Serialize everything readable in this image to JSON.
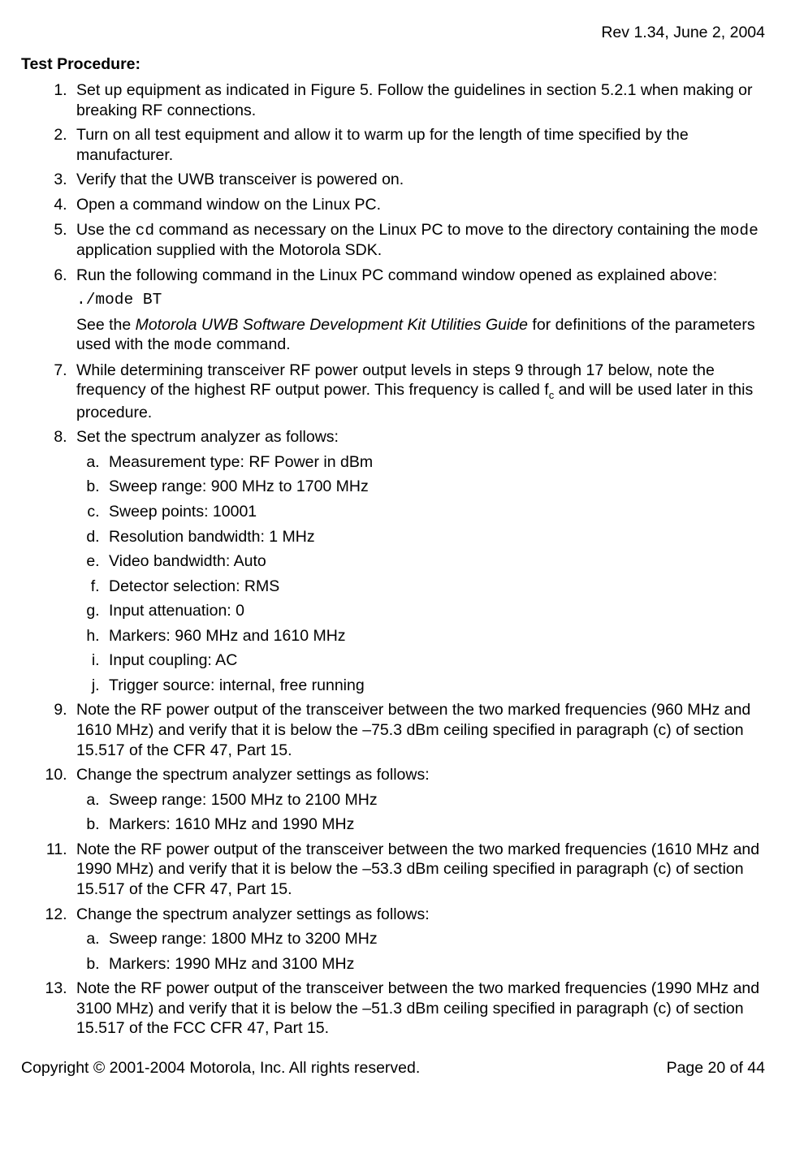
{
  "header": {
    "revision": "Rev 1.34, June 2, 2004"
  },
  "heading": "Test Procedure:",
  "steps": {
    "s1": "Set up equipment as indicated in Figure 5. Follow the guidelines in section 5.2.1 when making or breaking RF connections.",
    "s2": "Turn on all test equipment and allow it to warm up for the length of time specified by the manufacturer.",
    "s3": "Verify that the UWB transceiver is powered on.",
    "s4": "Open a command window on the Linux PC.",
    "s5_a": "Use the ",
    "s5_cd": "cd",
    "s5_b": " command as necessary on the Linux PC to move to the directory containing the ",
    "s5_mode": "mode",
    "s5_c": " application supplied with the Motorola SDK.",
    "s6_a": "Run the following command in the Linux PC command window opened as explained above:",
    "s6_cmd": "./mode BT",
    "s6_b": "See the ",
    "s6_title": "Motorola UWB Software Development Kit Utilities Guide",
    "s6_c": " for definitions of the parameters used with the ",
    "s6_mode": "mode",
    "s6_d": " command.",
    "s7_a": "While determining transceiver RF power output levels in steps 9 through 17 below, note the frequency of the highest RF output power. This frequency is called f",
    "s7_sub": "c",
    "s7_b": " and will be used later in this procedure.",
    "s8": "Set the spectrum analyzer as follows:",
    "s8a": "Measurement type: RF Power in dBm",
    "s8b": "Sweep range: 900 MHz to 1700 MHz",
    "s8c": "Sweep points: 10001",
    "s8d": "Resolution bandwidth: 1 MHz",
    "s8e": "Video bandwidth: Auto",
    "s8f": "Detector selection: RMS",
    "s8g": "Input attenuation: 0",
    "s8h": "Markers: 960 MHz and 1610 MHz",
    "s8i": "Input coupling: AC",
    "s8j": "Trigger source: internal, free running",
    "s9": "Note the RF power output of the transceiver between the two marked frequencies (960 MHz and 1610 MHz) and verify that it is below the –75.3 dBm ceiling specified in paragraph (c) of section 15.517 of the CFR 47, Part 15.",
    "s10": "Change the spectrum analyzer settings as follows:",
    "s10a": "Sweep range: 1500 MHz to 2100 MHz",
    "s10b": "Markers: 1610 MHz and 1990 MHz",
    "s11": "Note the RF power output of the transceiver between the two marked frequencies (1610 MHz and 1990 MHz) and verify that it is below the –53.3 dBm ceiling specified in paragraph (c) of section 15.517 of the CFR 47, Part 15.",
    "s12": "Change the spectrum analyzer settings as follows:",
    "s12a": "Sweep range: 1800 MHz to 3200 MHz",
    "s12b": "Markers: 1990 MHz and 3100 MHz",
    "s13": "Note the RF power output of the transceiver between the two marked frequencies (1990 MHz and 3100 MHz) and verify that it is below the –51.3 dBm ceiling specified in paragraph (c) of section 15.517 of the FCC CFR 47, Part 15."
  },
  "footer": {
    "copyright": "Copyright © 2001-2004 Motorola, Inc. All rights reserved.",
    "page": "Page 20 of 44"
  }
}
